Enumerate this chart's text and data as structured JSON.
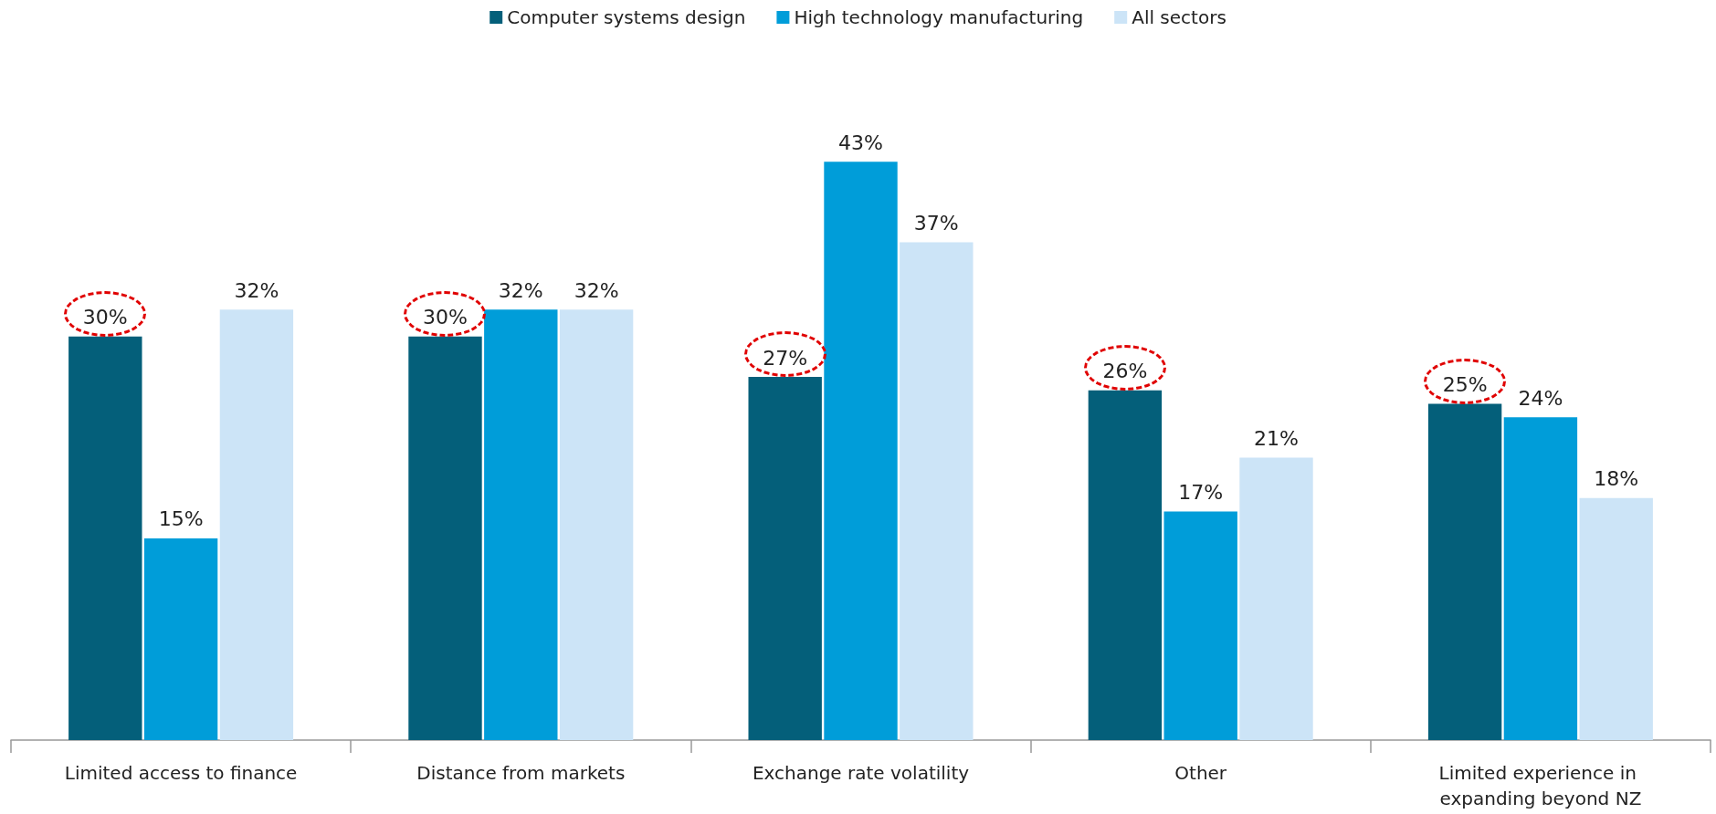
{
  "chart_data": {
    "type": "bar",
    "categories": [
      "Limited access to finance",
      "Distance from markets",
      "Exchange rate volatility",
      "Other",
      "Limited experience in expanding beyond NZ"
    ],
    "series": [
      {
        "name": "Computer systems design",
        "color": "#045f7a",
        "values": [
          30,
          30,
          27,
          26,
          25
        ],
        "value_labels": [
          "30%",
          "30%",
          "27%",
          "26%",
          "25%"
        ]
      },
      {
        "name": "High technology manufacturing",
        "color": "#009dd9",
        "values": [
          15,
          32,
          43,
          17,
          24
        ],
        "value_labels": [
          "15%",
          "32%",
          "43%",
          "17%",
          "24%"
        ]
      },
      {
        "name": "All sectors",
        "color": "#cce4f7",
        "values": [
          32,
          32,
          37,
          21,
          18
        ],
        "value_labels": [
          "32%",
          "32%",
          "37%",
          "21%",
          "18%"
        ]
      }
    ],
    "legend": "top"
  }
}
